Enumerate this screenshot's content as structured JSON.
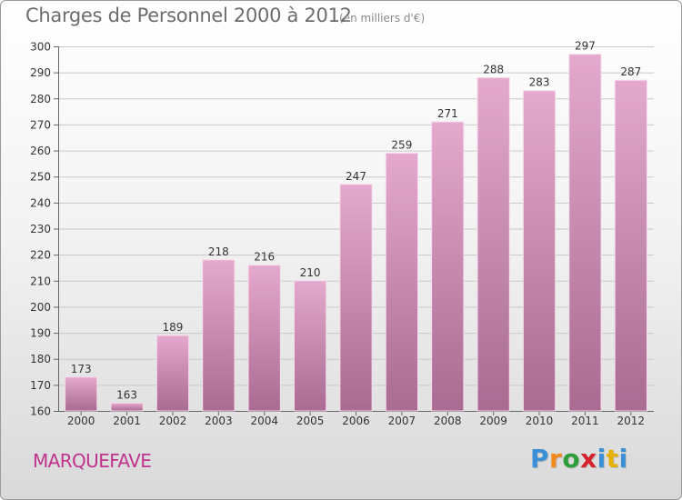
{
  "header": {
    "title": "Charges de Personnel 2000 à 2012",
    "subtitle": "(en milliers d'€)"
  },
  "footer": {
    "commune": "MARQUEFAVE",
    "logo_text": "Proxiti"
  },
  "colors": {
    "bar_top": "#e4a9cd",
    "bar_bottom": "#a96b91",
    "logo": [
      "#3a8fd6",
      "#f08a1c",
      "#2f9e3a",
      "#d4242b",
      "#3a8fd6",
      "#e6b000",
      "#3a8fd6"
    ]
  },
  "chart_data": {
    "type": "bar",
    "title": "Charges de Personnel 2000 à 2012",
    "subtitle": "(en milliers d'€)",
    "categories": [
      "2000",
      "2001",
      "2002",
      "2003",
      "2004",
      "2005",
      "2006",
      "2007",
      "2008",
      "2009",
      "2010",
      "2011",
      "2012"
    ],
    "values": [
      173,
      163,
      189,
      218,
      216,
      210,
      247,
      259,
      271,
      288,
      283,
      297,
      287
    ],
    "ylim": [
      160,
      300
    ],
    "yticks": [
      160,
      170,
      180,
      190,
      200,
      210,
      220,
      230,
      240,
      250,
      260,
      270,
      280,
      290,
      300
    ],
    "grid": true,
    "data_labels": true
  }
}
